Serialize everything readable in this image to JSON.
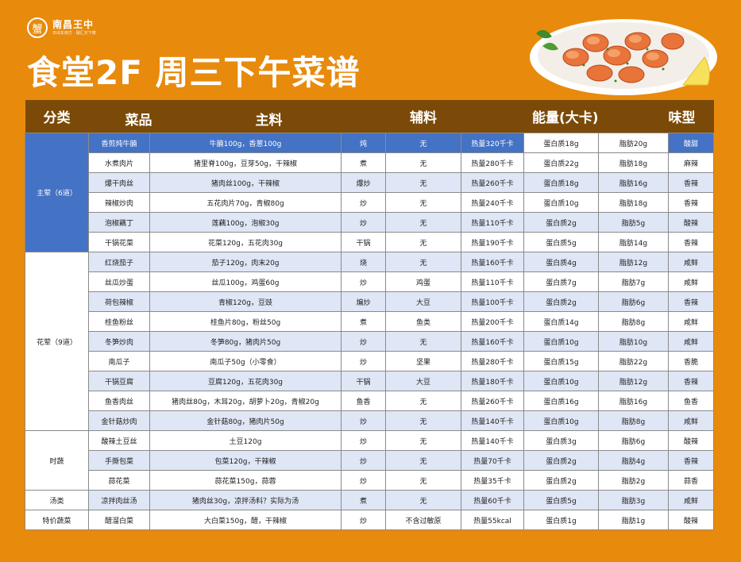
{
  "brand": {
    "logo_char": "蟹",
    "name": "南昌王中",
    "subtitle": "日出东南方 · 融汇天下菜"
  },
  "title": "食堂2F 周三下午菜谱",
  "header": [
    "分类",
    "菜品",
    "主料",
    "",
    "辅料",
    "能量(大卡)",
    "",
    "味型"
  ],
  "categories": [
    {
      "label": "主荤（6道）",
      "rows": 6
    },
    {
      "label": "花荤（9道）",
      "rows": 9
    },
    {
      "label": "时蔬",
      "rows": 3
    },
    {
      "label": "汤类",
      "rows": 1
    },
    {
      "label": "特价蔬菜",
      "rows": 1
    }
  ],
  "rows": [
    [
      "香煎炖牛腩",
      "牛腩100g，香葱100g",
      "炖",
      "无",
      "热量320千卡",
      "蛋白质18g",
      "脂肪20g",
      "酸甜"
    ],
    [
      "水煮肉片",
      "猪里脊100g，豆芽50g，干辣椒",
      "煮",
      "无",
      "热量280千卡",
      "蛋白质22g",
      "脂肪18g",
      "麻辣"
    ],
    [
      "爆干肉丝",
      "猪肉丝100g，干辣椒",
      "爆炒",
      "无",
      "热量260千卡",
      "蛋白质18g",
      "脂肪16g",
      "香辣"
    ],
    [
      "辣椒炒肉",
      "五花肉片70g，青椒80g",
      "炒",
      "无",
      "热量240千卡",
      "蛋白质10g",
      "脂肪18g",
      "香辣"
    ],
    [
      "泡椒藕丁",
      "莲藕100g，泡椒30g",
      "炒",
      "无",
      "热量110千卡",
      "蛋白质2g",
      "脂肪5g",
      "酸辣"
    ],
    [
      "干锅花菜",
      "花菜120g，五花肉30g",
      "干锅",
      "无",
      "热量190千卡",
      "蛋白质5g",
      "脂肪14g",
      "香辣"
    ],
    [
      "红烧茄子",
      "茄子120g，肉末20g",
      "烧",
      "无",
      "热量160千卡",
      "蛋白质4g",
      "脂肪12g",
      "咸鲜"
    ],
    [
      "丝瓜炒蛋",
      "丝瓜100g，鸡蛋60g",
      "炒",
      "鸡蛋",
      "热量110千卡",
      "蛋白质7g",
      "脂肪7g",
      "咸鲜"
    ],
    [
      "荷包辣椒",
      "青椒120g，豆豉",
      "煸炒",
      "大豆",
      "热量100千卡",
      "蛋白质2g",
      "脂肪6g",
      "香辣"
    ],
    [
      "桂鱼粉丝",
      "桂鱼片80g，粉丝50g",
      "煮",
      "鱼类",
      "热量200千卡",
      "蛋白质14g",
      "脂肪8g",
      "咸鲜"
    ],
    [
      "冬笋炒肉",
      "冬笋80g，猪肉片50g",
      "炒",
      "无",
      "热量160千卡",
      "蛋白质10g",
      "脂肪10g",
      "咸鲜"
    ],
    [
      "南瓜子",
      "南瓜子50g（小零食）",
      "炒",
      "坚果",
      "热量280千卡",
      "蛋白质15g",
      "脂肪22g",
      "香脆"
    ],
    [
      "干锅豆腐",
      "豆腐120g，五花肉30g",
      "干锅",
      "大豆",
      "热量180千卡",
      "蛋白质10g",
      "脂肪12g",
      "香辣"
    ],
    [
      "鱼香肉丝",
      "猪肉丝80g，木耳20g，胡萝卜20g，青椒20g",
      "鱼香",
      "无",
      "热量260千卡",
      "蛋白质16g",
      "脂肪16g",
      "鱼香"
    ],
    [
      "金针菇炒肉",
      "金针菇80g，猪肉片50g",
      "炒",
      "无",
      "热量140千卡",
      "蛋白质10g",
      "脂肪8g",
      "咸鲜"
    ],
    [
      "酸辣土豆丝",
      "土豆120g",
      "炒",
      "无",
      "热量140千卡",
      "蛋白质3g",
      "脂肪6g",
      "酸辣"
    ],
    [
      "手撕包菜",
      "包菜120g，干辣椒",
      "炒",
      "无",
      "热量70千卡",
      "蛋白质2g",
      "脂肪4g",
      "香辣"
    ],
    [
      "蒜花菜",
      "蒜花菜150g，蒜蓉",
      "炒",
      "无",
      "热量35千卡",
      "蛋白质2g",
      "脂肪2g",
      "蒜香"
    ],
    [
      "凉拌肉丝汤",
      "猪肉丝30g，凉拌汤料？实际为汤",
      "煮",
      "无",
      "热量60千卡",
      "蛋白质5g",
      "脂肪3g",
      "咸鲜"
    ],
    [
      "醋溜白菜",
      "大白菜150g，醋，干辣椒",
      "炒",
      "不含过敏原",
      "热量55kcal",
      "蛋白质1g",
      "脂肪1g",
      "酸辣"
    ]
  ],
  "colors": {
    "background": "#e88a0c",
    "header": "#7b4a08",
    "highlight": "#4472c4",
    "stripe": "#dfe6f5"
  }
}
